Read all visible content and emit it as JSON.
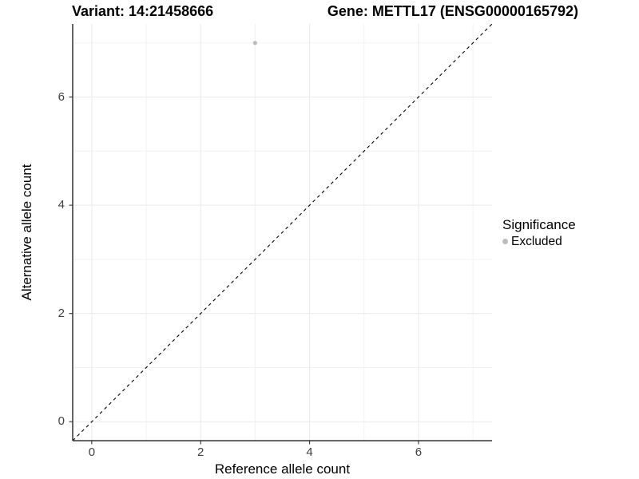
{
  "figure": {
    "title_left": "Variant: 14:21458666",
    "title_right": "Gene: METTL17 (ENSG00000165792)"
  },
  "chart_data": {
    "type": "scatter",
    "title": "Variant: 14:21458666   Gene: METTL17 (ENSG00000165792)",
    "xlabel": "Reference allele count",
    "ylabel": "Alternative allele count",
    "xlim": [
      -0.35,
      7.35
    ],
    "ylim": [
      -0.35,
      7.35
    ],
    "x_major_ticks": [
      0,
      2,
      4,
      6
    ],
    "y_major_ticks": [
      0,
      2,
      4,
      6
    ],
    "x_minor_ticks": [
      1,
      3,
      5,
      7
    ],
    "y_minor_ticks": [
      1,
      3,
      5,
      7
    ],
    "grid": true,
    "series": [
      {
        "name": "Excluded",
        "color": "#bdbdbd",
        "points": [
          {
            "x": 3,
            "y": 7
          }
        ]
      }
    ],
    "reference_line": {
      "type": "identity",
      "slope": 1,
      "intercept": 0,
      "style": "dashed",
      "color": "#000000"
    },
    "legend": {
      "title": "Significance",
      "position": "right",
      "items": [
        {
          "label": "Excluded",
          "color": "#bdbdbd"
        }
      ]
    },
    "colors": {
      "background": "#ffffff",
      "grid_major": "#ebebeb",
      "grid_minor": "#f2f2f2",
      "axis_line": "#333333",
      "tick_label": "#404040"
    }
  }
}
